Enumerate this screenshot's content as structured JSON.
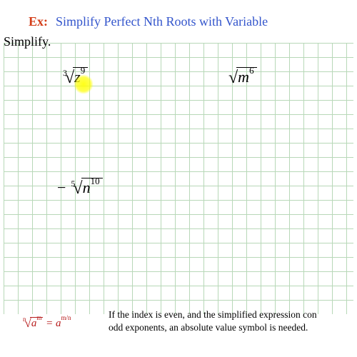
{
  "header": {
    "ex_label": "Ex:",
    "title": "Simplify Perfect Nth Roots with Variable",
    "simplify": "Simplify."
  },
  "expressions": {
    "e1": {
      "index": "3",
      "var": "z",
      "exp": "9"
    },
    "e2": {
      "var": "m",
      "exp": "6"
    },
    "e3": {
      "sign": "−",
      "index": "5",
      "var": "n",
      "exp": "10"
    }
  },
  "formula": {
    "index": "n",
    "var": "a",
    "exp": "m",
    "eq": " = ",
    "rhs_base": "a",
    "rhs_exp": "m/n"
  },
  "note": {
    "line1": "If the index is even, and the simplified expression con",
    "line2": "odd exponents,  an absolute value symbol is needed."
  },
  "colors": {
    "ex": "#d43f1a",
    "title": "#3355cc",
    "formula": "#b71c1c",
    "grid": "#b8d8b8",
    "highlight": "#ffff00"
  }
}
